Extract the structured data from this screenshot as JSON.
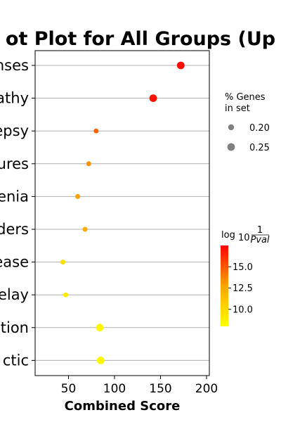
{
  "chart_data": {
    "type": "scatter",
    "title": "ot Plot for All Groups (Up",
    "xlabel": "Combined Score",
    "xlim": [
      12,
      205
    ],
    "xticks": [
      50,
      100,
      150,
      200
    ],
    "grid": "horizontal",
    "categories": [
      "nses",
      "athy",
      "epsy",
      "ures",
      "enia",
      "ders",
      "ease",
      "elay",
      "ation",
      "ctic"
    ],
    "x": [
      172,
      142,
      80,
      72,
      60,
      68,
      44,
      47,
      84,
      85
    ],
    "gene_pct": [
      0.25,
      0.25,
      0.2,
      0.2,
      0.2,
      0.2,
      0.2,
      0.2,
      0.25,
      0.25
    ],
    "log10_inv_pval": [
      17.2,
      17.0,
      14.6,
      13.3,
      12.9,
      12.4,
      9.6,
      9.0,
      8.5,
      8.4
    ],
    "size_legend": {
      "title_line1": "% Genes",
      "title_line2": "in set",
      "entries": [
        "0.20",
        "0.25"
      ]
    },
    "colorbar": {
      "label_prefix": "log",
      "label_sub": "10",
      "label_num": "1",
      "label_den": "Pval",
      "range": [
        8.0,
        17.5
      ],
      "ticks": [
        "10.0",
        "12.5",
        "15.0"
      ],
      "colors": [
        "#ffff00",
        "#ffa500",
        "#ff0000"
      ]
    }
  }
}
